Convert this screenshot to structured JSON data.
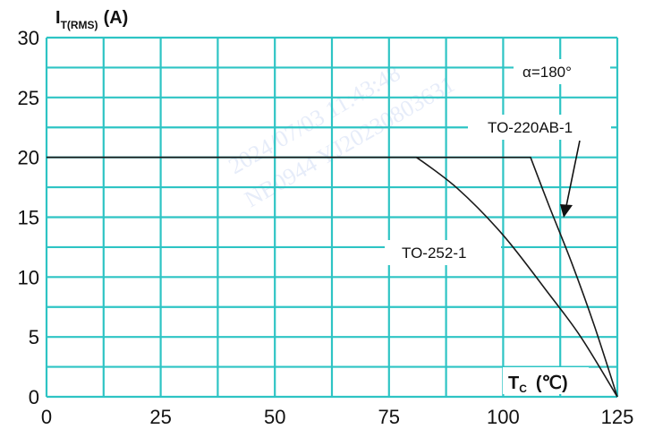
{
  "chart_data": {
    "type": "line",
    "title": "",
    "ylabel_main": "I",
    "ylabel_sub": "T(RMS)",
    "ylabel_unit": "(A)",
    "xlabel_main": "T",
    "xlabel_sub": "C",
    "xlabel_unit": "(℃)",
    "xlim": [
      0,
      125
    ],
    "ylim": [
      0,
      30
    ],
    "x_ticks": [
      0,
      25,
      50,
      75,
      100,
      125
    ],
    "y_ticks": [
      0,
      5,
      10,
      15,
      20,
      25,
      30
    ],
    "grid": true,
    "grid_color": "#2ec4c4",
    "line_color": "#1a1a1a",
    "series": [
      {
        "name": "TO-252-1",
        "x": [
          0,
          81,
          90,
          100,
          110,
          117,
          125
        ],
        "y": [
          20,
          20,
          17.4,
          13.5,
          8.6,
          5.0,
          0
        ]
      },
      {
        "name": "TO-220AB-1",
        "x": [
          0,
          106,
          110,
          115,
          120,
          125
        ],
        "y": [
          20,
          20,
          16.0,
          11.2,
          5.9,
          0
        ]
      }
    ],
    "annotations": [
      {
        "text": "α=180°"
      },
      {
        "text": "TO-220AB-1"
      },
      {
        "text": "TO-252-1"
      }
    ],
    "watermark": [
      "2024/07/03 11:43:48",
      "NB0944 YJ20230803631"
    ]
  }
}
